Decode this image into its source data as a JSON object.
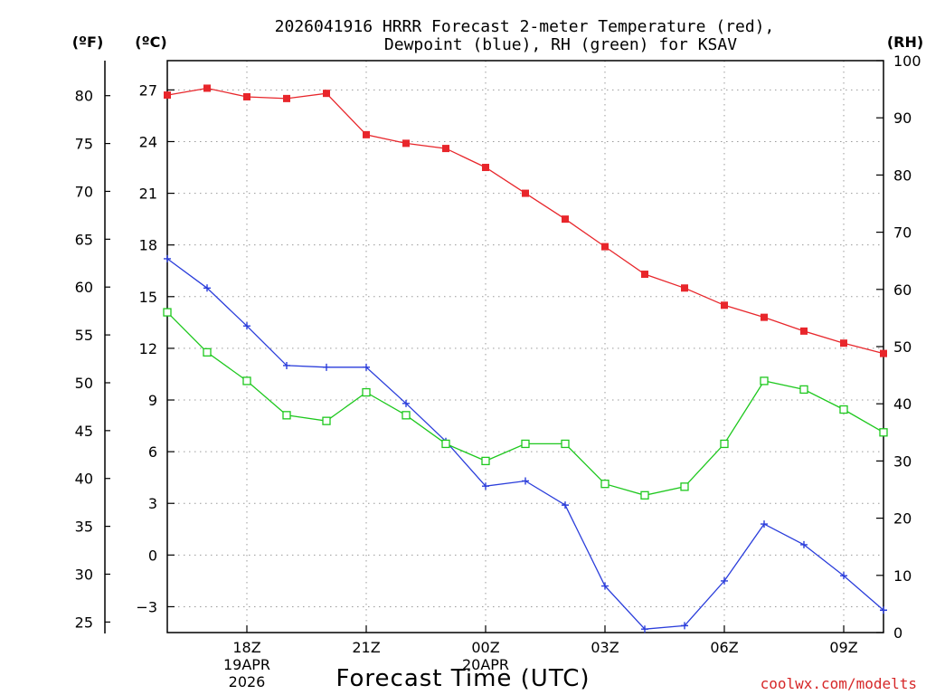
{
  "title": {
    "line1": "2026041916 HRRR Forecast 2-meter Temperature (red),",
    "line2": "Dewpoint (blue), RH (green) for KSAV"
  },
  "axes": {
    "f_unit": "(ºF)",
    "c_unit": "(ºC)",
    "rh_unit": "(RH)",
    "f_ticks": [
      "80",
      "75",
      "70",
      "65",
      "60",
      "55",
      "50",
      "45",
      "40",
      "35",
      "30",
      "25"
    ],
    "c_ticks": [
      "27",
      "24",
      "21",
      "18",
      "15",
      "12",
      "9",
      "6",
      "3",
      "0",
      "−3"
    ],
    "rh_ticks": [
      "100",
      "90",
      "80",
      "70",
      "60",
      "50",
      "40",
      "30",
      "20",
      "10",
      "0"
    ],
    "x_ticks": [
      {
        "label": "18Z",
        "sub1": "19APR",
        "sub2": "2026"
      },
      {
        "label": "21Z",
        "sub1": "",
        "sub2": ""
      },
      {
        "label": "00Z",
        "sub1": "20APR",
        "sub2": ""
      },
      {
        "label": "03Z",
        "sub1": "",
        "sub2": ""
      },
      {
        "label": "06Z",
        "sub1": "",
        "sub2": ""
      },
      {
        "label": "09Z",
        "sub1": "",
        "sub2": ""
      }
    ],
    "xlabel": "Forecast Time (UTC)"
  },
  "credit": "coolwx.com/modelts",
  "chart_data": {
    "type": "line",
    "title": "2026041916 HRRR Forecast 2-meter Temperature (red), Dewpoint (blue), RH (green) for KSAV",
    "x_hours": [
      0,
      1,
      2,
      3,
      4,
      5,
      6,
      7,
      8,
      9,
      10,
      11,
      12,
      13,
      14,
      15,
      16,
      17,
      18
    ],
    "x_start": "2026-04-19 16Z",
    "x_tick_hours": [
      2,
      5,
      8,
      11,
      14,
      17
    ],
    "xlim": [
      0,
      18
    ],
    "celsius_range": [
      -4.5,
      28.7
    ],
    "fahrenheit_range": [
      23.9,
      83.66
    ],
    "rh_range": [
      0,
      100
    ],
    "series": [
      {
        "name": "Temperature",
        "units": "C",
        "color": "#e8262b",
        "marker": "filled-square",
        "values": [
          26.7,
          27.1,
          26.6,
          26.5,
          26.8,
          24.4,
          23.9,
          23.6,
          22.5,
          21.0,
          19.5,
          17.9,
          16.3,
          15.5,
          14.5,
          13.8,
          13.0,
          12.3,
          11.7
        ]
      },
      {
        "name": "Dewpoint",
        "units": "C",
        "color": "#2a3ddb",
        "marker": "plus",
        "values": [
          17.2,
          15.5,
          13.3,
          11.0,
          10.9,
          10.9,
          8.8,
          6.6,
          4.0,
          4.3,
          2.9,
          -1.8,
          -4.3,
          -4.1,
          -1.5,
          1.8,
          0.6,
          -1.2,
          -3.2
        ]
      },
      {
        "name": "RH",
        "units": "%",
        "color": "#1ec81e",
        "marker": "open-square",
        "values": [
          56,
          49,
          44,
          38,
          37,
          42,
          38,
          33,
          30,
          33,
          33,
          26,
          24,
          25.5,
          33,
          44,
          42.5,
          39,
          35
        ]
      }
    ]
  }
}
